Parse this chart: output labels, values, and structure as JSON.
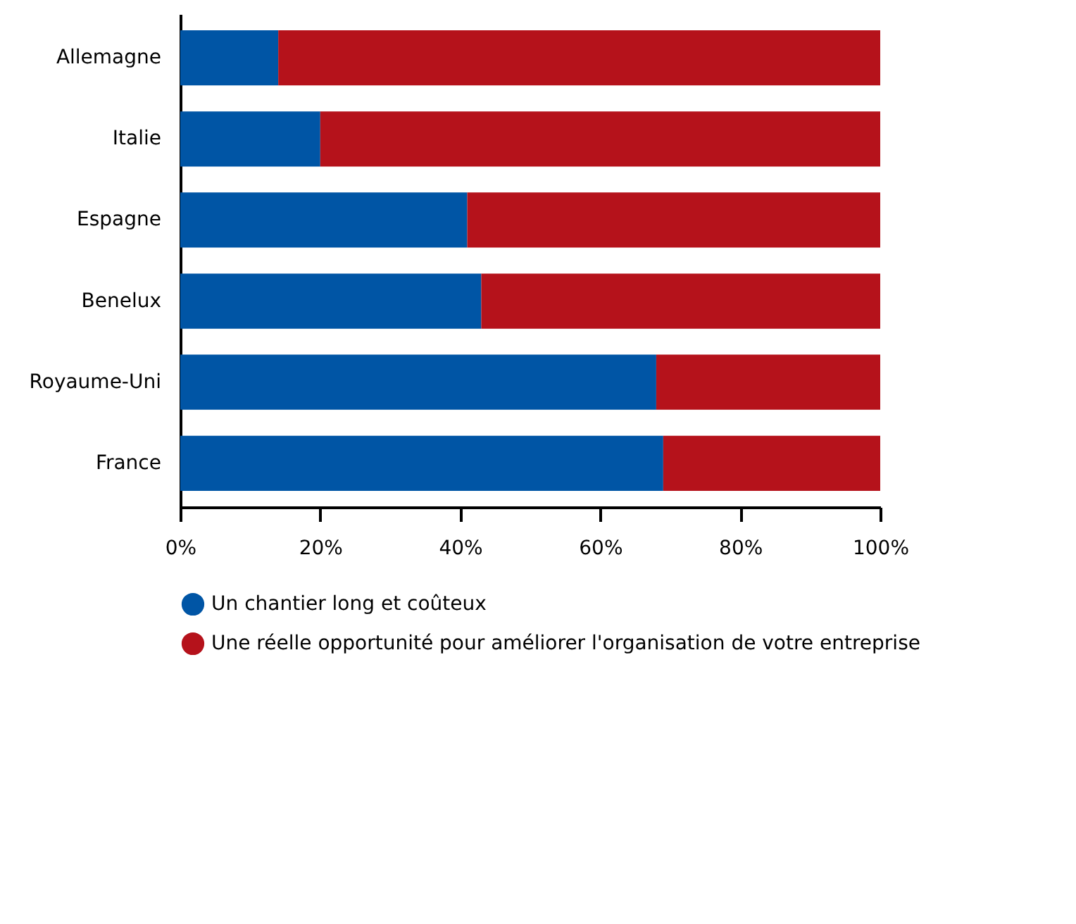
{
  "chart_data": {
    "type": "bar",
    "orientation": "horizontal",
    "stacked": true,
    "categories": [
      "Allemagne",
      "Italie",
      "Espagne",
      "Benelux",
      "Royaume-Uni",
      "France"
    ],
    "series": [
      {
        "name": "Un chantier long et coûteux",
        "color": "#0055a5",
        "values": [
          14,
          20,
          41,
          43,
          68,
          69
        ]
      },
      {
        "name": "Une réelle opportunité pour améliorer l'organisation de votre entreprise",
        "color": "#b5121b",
        "values": [
          86,
          80,
          59,
          57,
          32,
          31
        ]
      }
    ],
    "xlim": [
      0,
      100
    ],
    "xticks": [
      {
        "value": 0,
        "label": "0%"
      },
      {
        "value": 20,
        "label": "20%"
      },
      {
        "value": 40,
        "label": "40%"
      },
      {
        "value": 60,
        "label": "60%"
      },
      {
        "value": 80,
        "label": "80%"
      },
      {
        "value": 100,
        "label": "100%"
      }
    ],
    "legend": "bottom",
    "grid": false
  }
}
